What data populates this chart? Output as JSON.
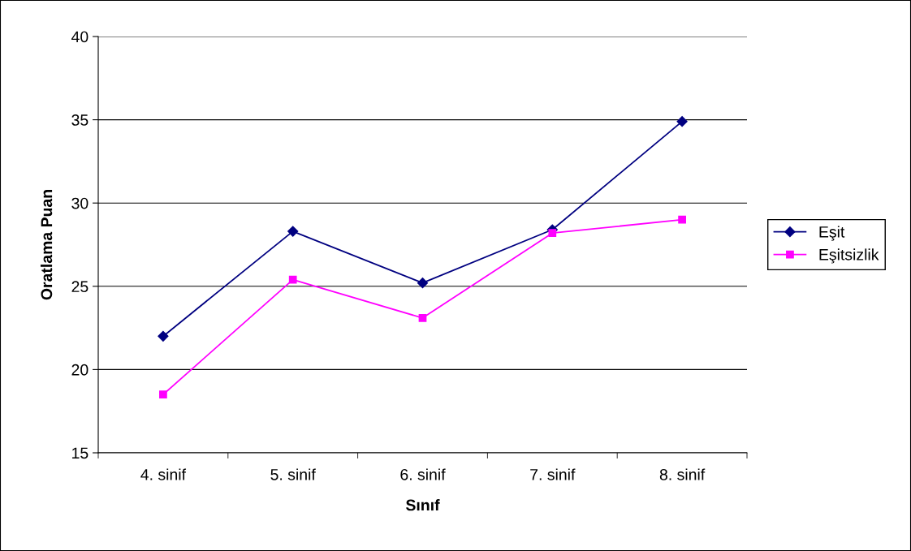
{
  "chart_data": {
    "type": "line",
    "xlabel": "Sınıf",
    "ylabel": "Oratlama Puan",
    "categories": [
      "4. sinif",
      "5. sinif",
      "6. sinif",
      "7. sinif",
      "8. sinif"
    ],
    "series": [
      {
        "name": "Eşit",
        "color": "#000080",
        "marker": "diamond",
        "values": [
          22.0,
          28.3,
          25.2,
          28.4,
          34.9
        ]
      },
      {
        "name": "Eşitsizlik",
        "color": "#ff00ff",
        "marker": "square",
        "values": [
          18.5,
          25.4,
          23.1,
          28.2,
          29.0
        ]
      }
    ],
    "ylim": [
      15,
      40
    ],
    "yticks": [
      15,
      20,
      25,
      30,
      35,
      40
    ],
    "grid": "y",
    "legend": "right",
    "line_style": "solid"
  }
}
